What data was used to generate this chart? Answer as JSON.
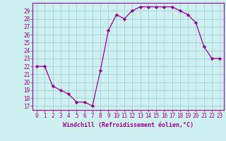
{
  "x": [
    0,
    1,
    2,
    3,
    4,
    5,
    6,
    7,
    8,
    9,
    10,
    11,
    12,
    13,
    14,
    15,
    16,
    17,
    18,
    19,
    20,
    21,
    22,
    23
  ],
  "y": [
    22,
    22,
    19.5,
    19,
    18.5,
    17.5,
    17.5,
    17,
    21.5,
    26.5,
    28.5,
    28,
    29,
    29.5,
    29.5,
    29.5,
    29.5,
    29.5,
    29,
    28.5,
    27.5,
    24.5,
    23,
    23
  ],
  "line_color": "#990099",
  "marker": "D",
  "marker_size": 2.2,
  "bg_color": "#cff0f0",
  "grid_color": "#99cccc",
  "xlabel": "Windchill (Refroidissement éolien,°C)",
  "ylabel_ticks": [
    17,
    18,
    19,
    20,
    21,
    22,
    23,
    24,
    25,
    26,
    27,
    28,
    29
  ],
  "ylim": [
    16.5,
    30.0
  ],
  "xlim": [
    -0.5,
    23.5
  ],
  "tick_color": "#990099",
  "spine_color": "#990099",
  "tick_fontsize": 5.5,
  "xlabel_fontsize": 6.0
}
